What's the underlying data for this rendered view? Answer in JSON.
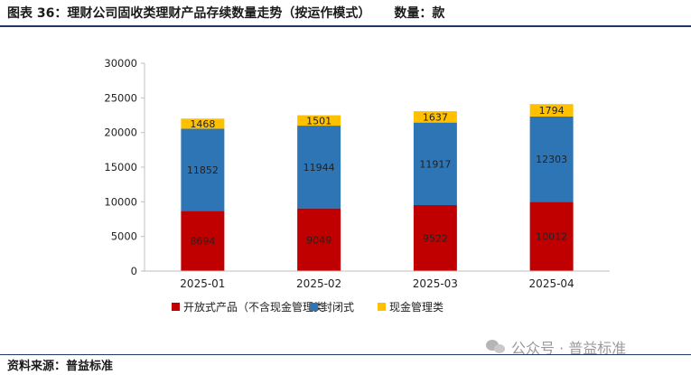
{
  "header": {
    "title": "图表 36：理财公司固收类理财产品存续数量走势（按运作模式）",
    "unit": "数量：款"
  },
  "footer": {
    "source": "资料来源：普益标准",
    "watermark": "公众号 · 普益标准",
    "watermark_icon": "wechat-icon"
  },
  "chart_data": {
    "type": "bar",
    "stacked": true,
    "categories": [
      "2025-01",
      "2025-02",
      "2025-03",
      "2025-04"
    ],
    "series": [
      {
        "name": "开放式产品（不含现金管理类",
        "color": "#c00000",
        "values": [
          8694,
          9049,
          9522,
          10012
        ]
      },
      {
        "name": "封闭式",
        "color": "#2e75b6",
        "values": [
          11852,
          11944,
          11917,
          12303
        ]
      },
      {
        "name": "现金管理类",
        "color": "#ffc000",
        "values": [
          1468,
          1501,
          1637,
          1794
        ]
      }
    ],
    "ylim": [
      0,
      30000
    ],
    "yticks": [
      0,
      5000,
      10000,
      15000,
      20000,
      25000,
      30000
    ],
    "grid": false,
    "legend_position": "bottom",
    "data_labels": true
  }
}
